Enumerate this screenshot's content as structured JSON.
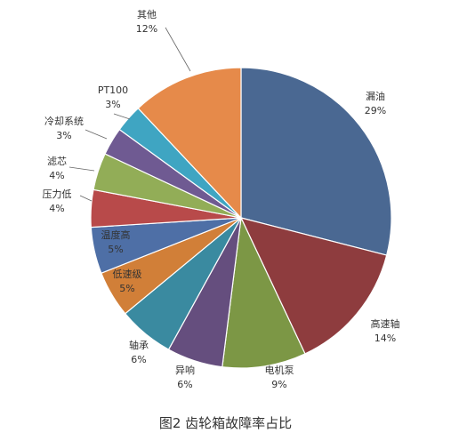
{
  "chart_data": {
    "type": "pie",
    "title": "",
    "caption": "图2 齿轮箱故障率占比",
    "legend": "none",
    "slices": [
      {
        "name": "漏油",
        "value": 29,
        "label": "29%",
        "color": "#4a6892"
      },
      {
        "name": "高速轴",
        "value": 14,
        "label": "14%",
        "color": "#8e3c3e"
      },
      {
        "name": "电机泵",
        "value": 9,
        "label": "9%",
        "color": "#7c9745"
      },
      {
        "name": "异响",
        "value": 6,
        "label": "6%",
        "color": "#654e7e"
      },
      {
        "name": "轴承",
        "value": 6,
        "label": "6%",
        "color": "#3a8aa0"
      },
      {
        "name": "低速级",
        "value": 5,
        "label": "5%",
        "color": "#d17f38"
      },
      {
        "name": "温度高",
        "value": 5,
        "label": "5%",
        "color": "#4e6fa6"
      },
      {
        "name": "压力低",
        "value": 4,
        "label": "4%",
        "color": "#b84a4a"
      },
      {
        "name": "滤芯",
        "value": 4,
        "label": "4%",
        "color": "#92ad57"
      },
      {
        "name": "冷却系统",
        "value": 3,
        "label": "3%",
        "color": "#6f5a92"
      },
      {
        "name": "PT100",
        "value": 3,
        "label": "3%",
        "color": "#3fa5c2"
      },
      {
        "name": "其他",
        "value": 12,
        "label": "12%",
        "color": "#e68a4a"
      }
    ]
  }
}
